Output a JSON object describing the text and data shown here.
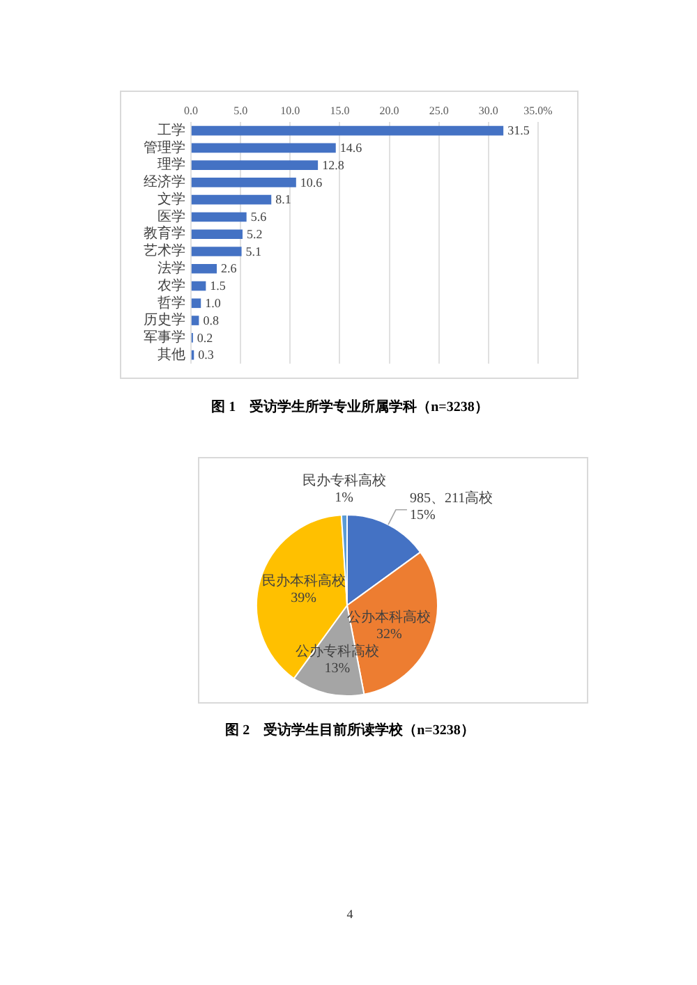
{
  "chart_data": [
    {
      "type": "bar",
      "orientation": "horizontal",
      "title": "图 1　受访学生所学专业所属学科（n=3238）",
      "categories": [
        "工学",
        "管理学",
        "理学",
        "经济学",
        "文学",
        "医学",
        "教育学",
        "艺术学",
        "法学",
        "农学",
        "哲学",
        "历史学",
        "军事学",
        "其他"
      ],
      "values": [
        31.5,
        14.6,
        12.8,
        10.6,
        8.1,
        5.6,
        5.2,
        5.1,
        2.6,
        1.5,
        1.0,
        0.8,
        0.2,
        0.3
      ],
      "color": "#4472c4",
      "value_labels": [
        "31.5",
        "14.6",
        "12.8",
        "10.6",
        "8.1",
        "5.6",
        "5.2",
        "5.1",
        "2.6",
        "1.5",
        "1.0",
        "0.8",
        "0.2",
        "0.3"
      ],
      "xlim": [
        0,
        35
      ],
      "xticks": [
        {
          "value": 0,
          "label": "0.0"
        },
        {
          "value": 5,
          "label": "5.0"
        },
        {
          "value": 10,
          "label": "10.0"
        },
        {
          "value": 15,
          "label": "15.0"
        },
        {
          "value": 20,
          "label": "20.0"
        },
        {
          "value": 25,
          "label": "25.0"
        },
        {
          "value": 30,
          "label": "30.0"
        },
        {
          "value": 35,
          "label": "35.0%"
        }
      ],
      "grid": "x",
      "legend": false
    },
    {
      "type": "pie",
      "title": "图 2　受访学生目前所读学校（n=3238）",
      "categories": [
        "985、211高校",
        "公办本科高校",
        "公办专科高校",
        "民办本科高校",
        "民办专科高校"
      ],
      "values": [
        15,
        32,
        13,
        39,
        1
      ],
      "colors": [
        "#4472c4",
        "#ed7d31",
        "#a5a5a5",
        "#ffc000",
        "#5b9bd5"
      ],
      "value_labels": [
        "15%",
        "32%",
        "13%",
        "39%",
        "1%"
      ],
      "legend": false,
      "annotations": [
        "4"
      ]
    }
  ]
}
